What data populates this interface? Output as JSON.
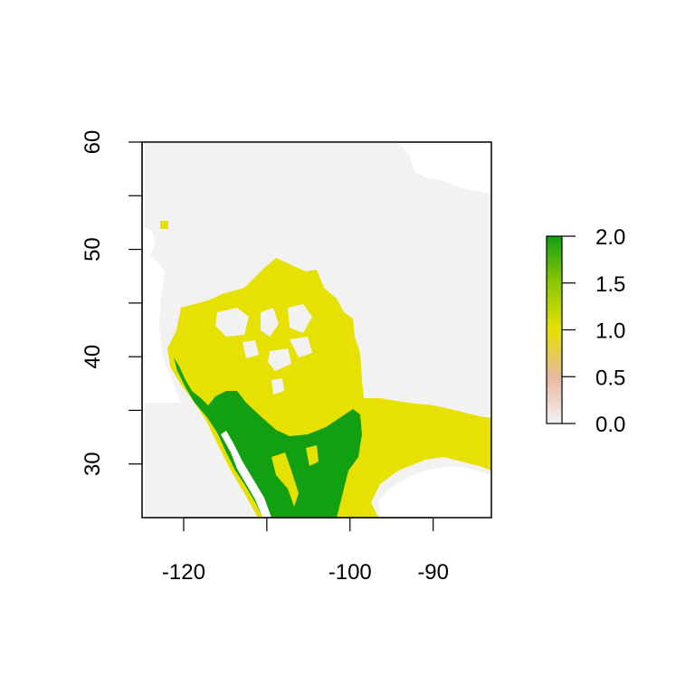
{
  "map": {
    "extent": {
      "lon": [
        -125,
        -83
      ],
      "lat": [
        25,
        60
      ]
    },
    "x_ticks": [
      {
        "value": -120,
        "label": "-120"
      },
      {
        "value": -110,
        "label": ""
      },
      {
        "value": -100,
        "label": "-100"
      },
      {
        "value": -90,
        "label": "-90"
      }
    ],
    "y_ticks": [
      {
        "value": 30,
        "label": "30"
      },
      {
        "value": 35,
        "label": ""
      },
      {
        "value": 40,
        "label": "40"
      },
      {
        "value": 45,
        "label": ""
      },
      {
        "value": 50,
        "label": "50"
      },
      {
        "value": 55,
        "label": ""
      },
      {
        "value": 60,
        "label": "60"
      }
    ],
    "colors": {
      "background": "#f2f2f2",
      "value_1": "#e6e100",
      "value_2": "#12a012"
    }
  },
  "legend": {
    "range": [
      0,
      2
    ],
    "ticks": [
      {
        "value": 0.0,
        "label": "0.0"
      },
      {
        "value": 0.5,
        "label": "0.5"
      },
      {
        "value": 1.0,
        "label": "1.0"
      },
      {
        "value": 1.5,
        "label": "1.5"
      },
      {
        "value": 2.0,
        "label": "2.0"
      }
    ],
    "gradient": [
      "#f2f2f2",
      "#e9b8a0",
      "#e6e100",
      "#8cc800",
      "#12a012"
    ]
  }
}
